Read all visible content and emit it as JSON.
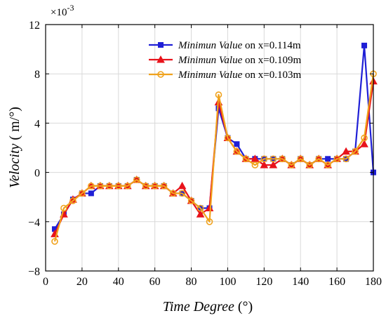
{
  "chart_data": {
    "type": "line",
    "title": "",
    "xlabel": {
      "main": "Time Degree",
      "unit": "(°)"
    },
    "ylabel": {
      "main": "Velocity",
      "unit": "( m/°)"
    },
    "y_multiplier": {
      "base": "×10",
      "exp": "-3"
    },
    "xlim": [
      0,
      180
    ],
    "ylim": [
      -8,
      12
    ],
    "xticks": [
      "0",
      "20",
      "40",
      "60",
      "80",
      "100",
      "120",
      "140",
      "160",
      "180"
    ],
    "yticks": [
      "−8",
      "−4",
      "0",
      "4",
      "8",
      "12"
    ],
    "grid": true,
    "legend_position": "top-right",
    "series": [
      {
        "name": "Minimun Value",
        "name_suffix": "on x=0.114m",
        "color": "#1f1fd6",
        "marker": "square",
        "points": [
          [
            5,
            -4.6
          ],
          [
            10,
            -3.4
          ],
          [
            15,
            -2.2
          ],
          [
            20,
            -1.7
          ],
          [
            25,
            -1.7
          ],
          [
            30,
            -1.1
          ],
          [
            35,
            -1.1
          ],
          [
            40,
            -1.1
          ],
          [
            45,
            -1.1
          ],
          [
            50,
            -0.6
          ],
          [
            55,
            -1.1
          ],
          [
            60,
            -1.1
          ],
          [
            65,
            -1.1
          ],
          [
            70,
            -1.7
          ],
          [
            75,
            -1.7
          ],
          [
            80,
            -2.3
          ],
          [
            85,
            -2.9
          ],
          [
            90,
            -2.9
          ],
          [
            95,
            5.2
          ],
          [
            100,
            2.8
          ],
          [
            105,
            2.3
          ],
          [
            110,
            1.1
          ],
          [
            115,
            1.1
          ],
          [
            120,
            1.1
          ],
          [
            125,
            1.1
          ],
          [
            130,
            1.1
          ],
          [
            135,
            0.6
          ],
          [
            140,
            1.1
          ],
          [
            145,
            0.6
          ],
          [
            150,
            1.1
          ],
          [
            155,
            1.1
          ],
          [
            160,
            1.1
          ],
          [
            165,
            1.1
          ],
          [
            170,
            1.7
          ],
          [
            175,
            10.3
          ],
          [
            180,
            0.0
          ]
        ]
      },
      {
        "name": "Minimun Value",
        "name_suffix": "on x=0.109m",
        "color": "#e8131b",
        "marker": "triangle",
        "points": [
          [
            5,
            -5.0
          ],
          [
            10,
            -3.4
          ],
          [
            15,
            -2.2
          ],
          [
            20,
            -1.7
          ],
          [
            25,
            -1.1
          ],
          [
            30,
            -1.1
          ],
          [
            35,
            -1.1
          ],
          [
            40,
            -1.1
          ],
          [
            45,
            -1.1
          ],
          [
            50,
            -0.6
          ],
          [
            55,
            -1.1
          ],
          [
            60,
            -1.1
          ],
          [
            65,
            -1.1
          ],
          [
            70,
            -1.7
          ],
          [
            75,
            -1.1
          ],
          [
            80,
            -2.3
          ],
          [
            85,
            -3.4
          ],
          [
            90,
            -2.9
          ],
          [
            95,
            5.7
          ],
          [
            100,
            2.8
          ],
          [
            105,
            1.7
          ],
          [
            110,
            1.1
          ],
          [
            115,
            1.1
          ],
          [
            120,
            0.6
          ],
          [
            125,
            0.6
          ],
          [
            130,
            1.1
          ],
          [
            135,
            0.6
          ],
          [
            140,
            1.1
          ],
          [
            145,
            0.6
          ],
          [
            150,
            1.1
          ],
          [
            155,
            0.6
          ],
          [
            160,
            1.1
          ],
          [
            165,
            1.7
          ],
          [
            170,
            1.7
          ],
          [
            175,
            2.3
          ],
          [
            180,
            7.4
          ]
        ]
      },
      {
        "name": "Minimun Value",
        "name_suffix": "on x=0.103m",
        "color": "#f0a21c",
        "marker": "circle",
        "points": [
          [
            5,
            -5.6
          ],
          [
            10,
            -2.9
          ],
          [
            15,
            -2.3
          ],
          [
            20,
            -1.7
          ],
          [
            25,
            -1.1
          ],
          [
            30,
            -1.1
          ],
          [
            35,
            -1.1
          ],
          [
            40,
            -1.1
          ],
          [
            45,
            -1.1
          ],
          [
            50,
            -0.6
          ],
          [
            55,
            -1.1
          ],
          [
            60,
            -1.1
          ],
          [
            65,
            -1.1
          ],
          [
            70,
            -1.7
          ],
          [
            75,
            -1.7
          ],
          [
            80,
            -2.3
          ],
          [
            85,
            -2.9
          ],
          [
            90,
            -4.0
          ],
          [
            95,
            6.3
          ],
          [
            100,
            2.8
          ],
          [
            105,
            1.7
          ],
          [
            110,
            1.1
          ],
          [
            115,
            0.6
          ],
          [
            120,
            1.1
          ],
          [
            125,
            1.1
          ],
          [
            130,
            1.1
          ],
          [
            135,
            0.6
          ],
          [
            140,
            1.1
          ],
          [
            145,
            0.6
          ],
          [
            150,
            1.1
          ],
          [
            155,
            0.6
          ],
          [
            160,
            1.1
          ],
          [
            165,
            1.1
          ],
          [
            170,
            1.7
          ],
          [
            175,
            2.8
          ],
          [
            180,
            8.0
          ]
        ]
      }
    ]
  }
}
